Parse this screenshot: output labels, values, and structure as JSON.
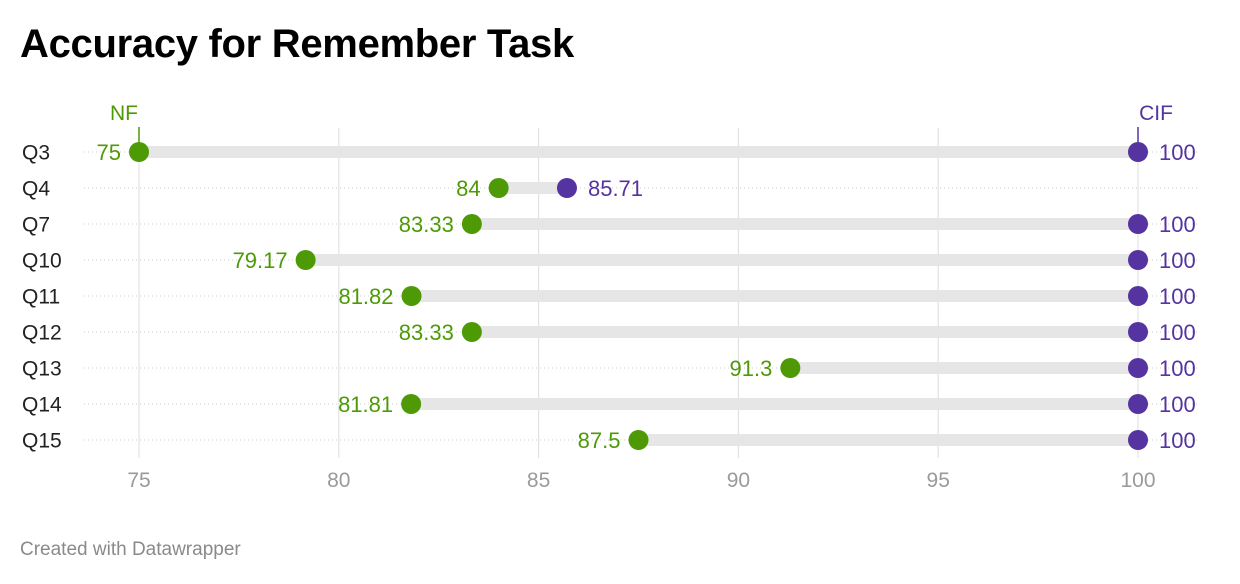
{
  "title": "Accuracy for Remember Task",
  "footer": "Created with Datawrapper",
  "colors": {
    "nf": "#4e9a06",
    "cif": "#5533a0",
    "range_bar": "#e6e6e6",
    "gridline": "#dddddd",
    "row_dots": "#cccccc"
  },
  "chart_data": {
    "type": "range-dot",
    "title": "Accuracy for Remember Task",
    "xlim": [
      75,
      100
    ],
    "x_ticks": [
      75,
      80,
      85,
      90,
      95,
      100
    ],
    "grid": true,
    "series": [
      {
        "name": "NF",
        "color": "#4e9a06",
        "values": [
          75,
          84,
          83.33,
          79.17,
          81.82,
          83.33,
          91.3,
          81.81,
          87.5
        ],
        "labels": [
          "75",
          "84",
          "83.33",
          "79.17",
          "81.82",
          "83.33",
          "91.3",
          "81.81",
          "87.5"
        ]
      },
      {
        "name": "CIF",
        "color": "#5533a0",
        "values": [
          100,
          85.71,
          100,
          100,
          100,
          100,
          100,
          100,
          100
        ],
        "labels": [
          "100",
          "85.71",
          "100",
          "100",
          "100",
          "100",
          "100",
          "100",
          "100"
        ]
      }
    ],
    "categories": [
      "Q3",
      "Q4",
      "Q7",
      "Q10",
      "Q11",
      "Q12",
      "Q13",
      "Q14",
      "Q15"
    ]
  }
}
